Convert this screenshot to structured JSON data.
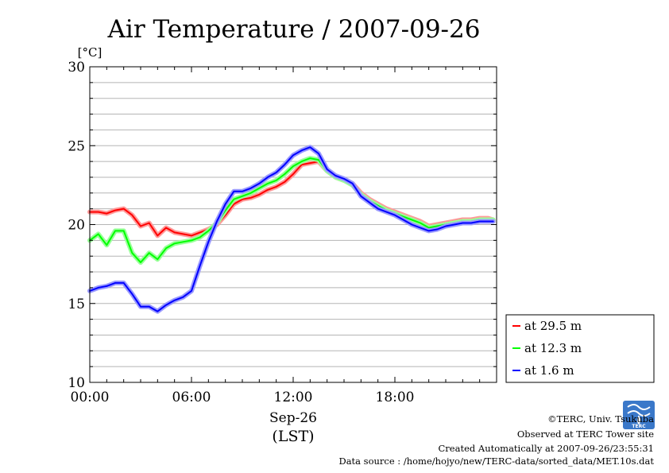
{
  "chart_data": {
    "type": "line",
    "title": "Air Temperature / 2007-09-26",
    "ylabel": "[°C]",
    "xlabel_date": "Sep-26",
    "xlabel_tz": "(LST)",
    "ylim": [
      10,
      30
    ],
    "xlim_hours": [
      0,
      24
    ],
    "y_ticks": [
      "10",
      "15",
      "20",
      "25",
      "30"
    ],
    "y_tick_values": [
      10,
      15,
      20,
      25,
      30
    ],
    "x_ticks": [
      "00:00",
      "06:00",
      "12:00",
      "18:00"
    ],
    "x_tick_values": [
      0,
      6,
      12,
      18
    ],
    "grid": "horizontal",
    "legend_position": "right",
    "series": [
      {
        "name": "at 29.5 m",
        "color": "#ff0000",
        "x": [
          0,
          0.5,
          1,
          1.5,
          2,
          2.5,
          3,
          3.5,
          4,
          4.5,
          5,
          5.5,
          6,
          6.5,
          7,
          7.5,
          8,
          8.5,
          9,
          9.5,
          10,
          10.5,
          11,
          11.5,
          12,
          12.5,
          13,
          13.5,
          14,
          14.5,
          15,
          15.5,
          16,
          16.5,
          17,
          17.5,
          18,
          18.5,
          19,
          19.5,
          20,
          20.5,
          21,
          21.5,
          22,
          22.5,
          23,
          23.5,
          23.8
        ],
        "values": [
          20.8,
          20.8,
          20.7,
          20.9,
          21.0,
          20.6,
          19.9,
          20.1,
          19.3,
          19.8,
          19.5,
          19.4,
          19.3,
          19.5,
          19.7,
          20.0,
          20.6,
          21.3,
          21.6,
          21.7,
          21.9,
          22.2,
          22.4,
          22.7,
          23.2,
          23.8,
          23.9,
          24.0,
          23.4,
          23.0,
          22.8,
          22.6,
          22.0,
          21.6,
          21.3,
          21.0,
          20.8,
          20.6,
          20.4,
          20.2,
          19.9,
          20.0,
          20.1,
          20.2,
          20.3,
          20.3,
          20.4,
          20.4,
          20.3
        ]
      },
      {
        "name": "at 12.3 m",
        "color": "#00ff00",
        "x": [
          0,
          0.5,
          1,
          1.5,
          2,
          2.5,
          3,
          3.5,
          4,
          4.5,
          5,
          5.5,
          6,
          6.5,
          7,
          7.5,
          8,
          8.5,
          9,
          9.5,
          10,
          10.5,
          11,
          11.5,
          12,
          12.5,
          13,
          13.5,
          14,
          14.5,
          15,
          15.5,
          16,
          16.5,
          17,
          17.5,
          18,
          18.5,
          19,
          19.5,
          20,
          20.5,
          21,
          21.5,
          22,
          22.5,
          23,
          23.5,
          23.8
        ],
        "values": [
          19.0,
          19.4,
          18.7,
          19.6,
          19.6,
          18.2,
          17.6,
          18.2,
          17.8,
          18.5,
          18.8,
          18.9,
          19.0,
          19.2,
          19.6,
          20.1,
          20.9,
          21.6,
          21.8,
          22.0,
          22.3,
          22.6,
          22.8,
          23.2,
          23.7,
          24.0,
          24.2,
          24.1,
          23.4,
          23.0,
          22.8,
          22.5,
          21.9,
          21.5,
          21.2,
          20.9,
          20.7,
          20.5,
          20.3,
          20.1,
          19.8,
          19.9,
          20.0,
          20.1,
          20.2,
          20.2,
          20.3,
          20.3,
          20.3
        ]
      },
      {
        "name": "at 1.6 m",
        "color": "#0000ff",
        "x": [
          0,
          0.5,
          1,
          1.5,
          2,
          2.5,
          3,
          3.5,
          4,
          4.5,
          5,
          5.5,
          6,
          6.5,
          7,
          7.5,
          8,
          8.5,
          9,
          9.5,
          10,
          10.5,
          11,
          11.5,
          12,
          12.5,
          13,
          13.5,
          14,
          14.5,
          15,
          15.5,
          16,
          16.5,
          17,
          17.5,
          18,
          18.5,
          19,
          19.5,
          20,
          20.5,
          21,
          21.5,
          22,
          22.5,
          23,
          23.5,
          23.8
        ],
        "values": [
          15.8,
          16.0,
          16.1,
          16.3,
          16.3,
          15.6,
          14.8,
          14.8,
          14.5,
          14.9,
          15.2,
          15.4,
          15.8,
          17.4,
          18.9,
          20.2,
          21.3,
          22.1,
          22.1,
          22.3,
          22.6,
          23.0,
          23.3,
          23.8,
          24.4,
          24.7,
          24.9,
          24.5,
          23.5,
          23.1,
          22.9,
          22.6,
          21.8,
          21.4,
          21.0,
          20.8,
          20.6,
          20.3,
          20.0,
          19.8,
          19.6,
          19.7,
          19.9,
          20.0,
          20.1,
          20.1,
          20.2,
          20.2,
          20.2
        ]
      }
    ]
  },
  "credits": {
    "copyright": "©TERC, Univ. Tsukuba",
    "observed": "Observed at TERC Tower site",
    "created": "Created Automatically at 2007-09-26/23:55:31",
    "source": "Data source : /home/hojyo/new/TERC-data/sorted_data/MET.10s.dat",
    "logo_text": "TERC"
  }
}
